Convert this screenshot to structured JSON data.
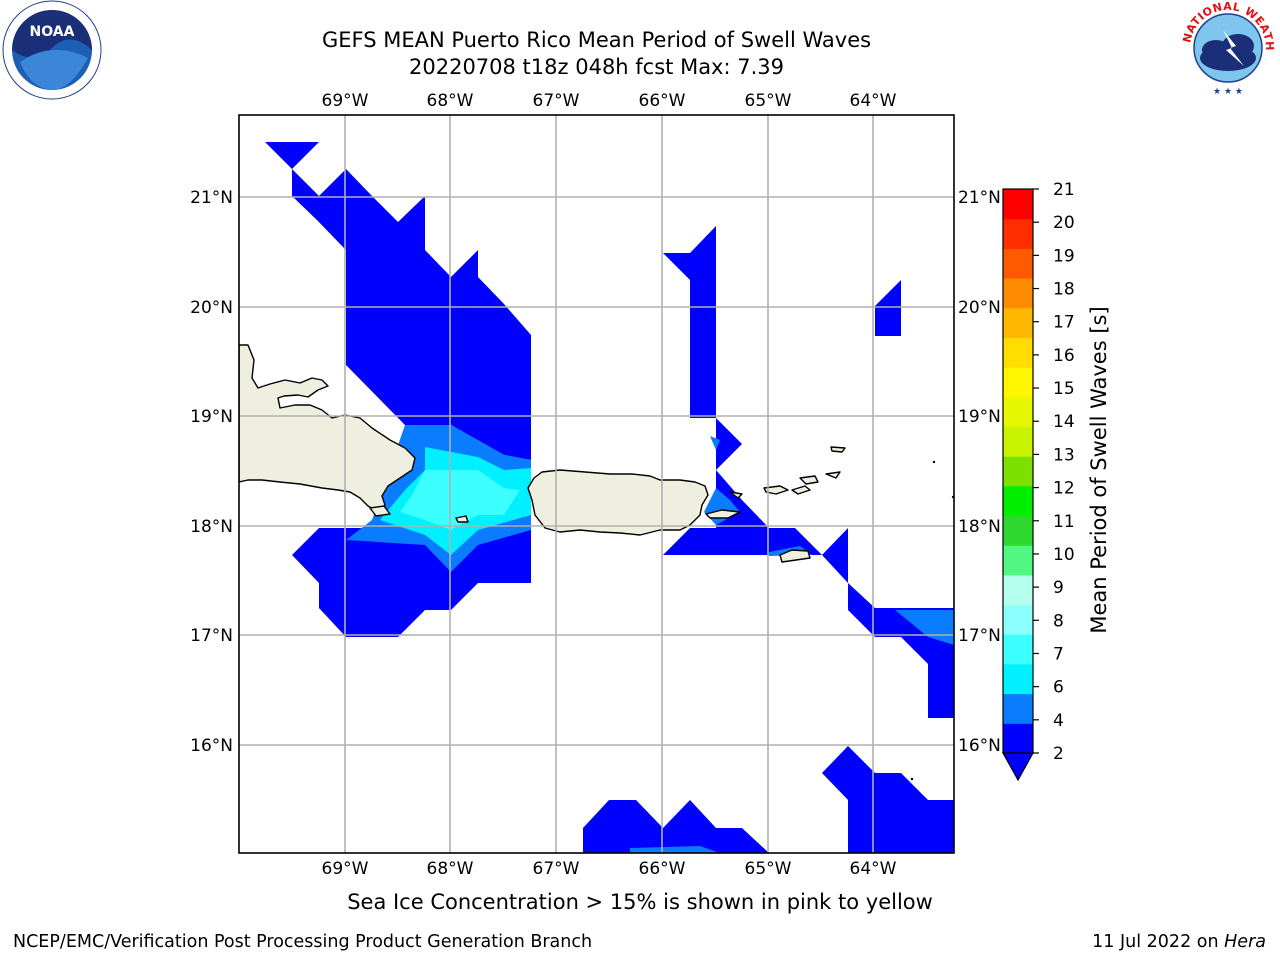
{
  "header": {
    "title": "GEFS MEAN Puerto Rico Mean Period of Swell Waves",
    "subtitle": "20220708 t18z 048h fcst   Max: 7.39"
  },
  "map": {
    "lon_range": [
      -70.0,
      -63.25
    ],
    "lat_range": [
      15.0,
      21.8
    ],
    "lon_ticks": [
      "69°W",
      "68°W",
      "67°W",
      "66°W",
      "65°W",
      "64°W"
    ],
    "lat_ticks": [
      "21°N",
      "20°N",
      "19°N",
      "18°N",
      "17°N",
      "16°N"
    ],
    "grid": true,
    "land_color": "#efefe0"
  },
  "colorbar": {
    "label": "Mean Period of Swell Waves [s]",
    "ticks": [
      "21",
      "20",
      "19",
      "18",
      "17",
      "16",
      "15",
      "14",
      "13",
      "12",
      "11",
      "10",
      "9",
      "8",
      "7",
      "6",
      "4",
      "2"
    ],
    "colors": [
      "#0000ff",
      "#0a7cff",
      "#00f0ff",
      "#3cffff",
      "#8cffff",
      "#b4ffee",
      "#50f882",
      "#2ed82e",
      "#00ee00",
      "#7ce000",
      "#c8f400",
      "#e6f700",
      "#fff500",
      "#ffdd00",
      "#ffb800",
      "#ff8c00",
      "#ff5a00",
      "#ff2d00",
      "#ff0000"
    ]
  },
  "footer": {
    "note": "Sea Ice Concentration > 15% is shown in pink to yellow",
    "credit": "NCEP/EMC/Verification Post Processing Product Generation Branch",
    "date": "11 Jul 2022 on",
    "host": "Hera"
  },
  "logos": {
    "noaa": "NOAA",
    "nws": "NATIONAL WEATHER SERVICE"
  }
}
